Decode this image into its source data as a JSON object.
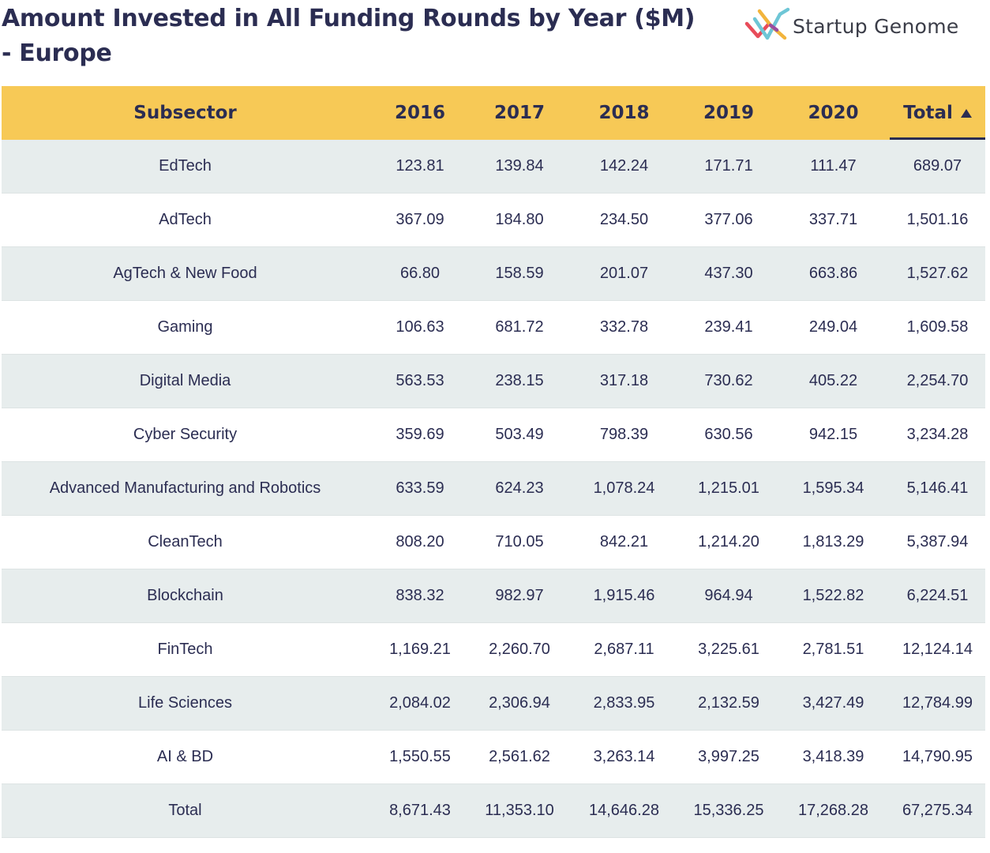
{
  "title": "Amount Invested in All Funding Rounds by Year ($M) - Europe",
  "logo": {
    "text": "Startup Genome",
    "icon": "startup-genome-logo-icon"
  },
  "sort": {
    "column": "Total",
    "direction": "ascending",
    "icon": "sort-ascending-icon"
  },
  "colors": {
    "header_bg": "#f7c956",
    "row_alt_bg": "#e7eded",
    "text": "#2b2d52"
  },
  "chart_data": {
    "type": "table",
    "title": "Amount Invested in All Funding Rounds by Year ($M) - Europe",
    "columns": [
      "Subsector",
      "2016",
      "2017",
      "2018",
      "2019",
      "2020",
      "Total"
    ],
    "rows": [
      [
        "EdTech",
        "123.81",
        "139.84",
        "142.24",
        "171.71",
        "111.47",
        "689.07"
      ],
      [
        "AdTech",
        "367.09",
        "184.80",
        "234.50",
        "377.06",
        "337.71",
        "1,501.16"
      ],
      [
        "AgTech & New Food",
        "66.80",
        "158.59",
        "201.07",
        "437.30",
        "663.86",
        "1,527.62"
      ],
      [
        "Gaming",
        "106.63",
        "681.72",
        "332.78",
        "239.41",
        "249.04",
        "1,609.58"
      ],
      [
        "Digital Media",
        "563.53",
        "238.15",
        "317.18",
        "730.62",
        "405.22",
        "2,254.70"
      ],
      [
        "Cyber Security",
        "359.69",
        "503.49",
        "798.39",
        "630.56",
        "942.15",
        "3,234.28"
      ],
      [
        "Advanced Manufacturing and Robotics",
        "633.59",
        "624.23",
        "1,078.24",
        "1,215.01",
        "1,595.34",
        "5,146.41"
      ],
      [
        "CleanTech",
        "808.20",
        "710.05",
        "842.21",
        "1,214.20",
        "1,813.29",
        "5,387.94"
      ],
      [
        "Blockchain",
        "838.32",
        "982.97",
        "1,915.46",
        "964.94",
        "1,522.82",
        "6,224.51"
      ],
      [
        "FinTech",
        "1,169.21",
        "2,260.70",
        "2,687.11",
        "3,225.61",
        "2,781.51",
        "12,124.14"
      ],
      [
        "Life Sciences",
        "2,084.02",
        "2,306.94",
        "2,833.95",
        "2,132.59",
        "3,427.49",
        "12,784.99"
      ],
      [
        "AI & BD",
        "1,550.55",
        "2,561.62",
        "3,263.14",
        "3,997.25",
        "3,418.39",
        "14,790.95"
      ],
      [
        "Total",
        "8,671.43",
        "11,353.10",
        "14,646.28",
        "15,336.25",
        "17,268.28",
        "67,275.34"
      ]
    ]
  }
}
